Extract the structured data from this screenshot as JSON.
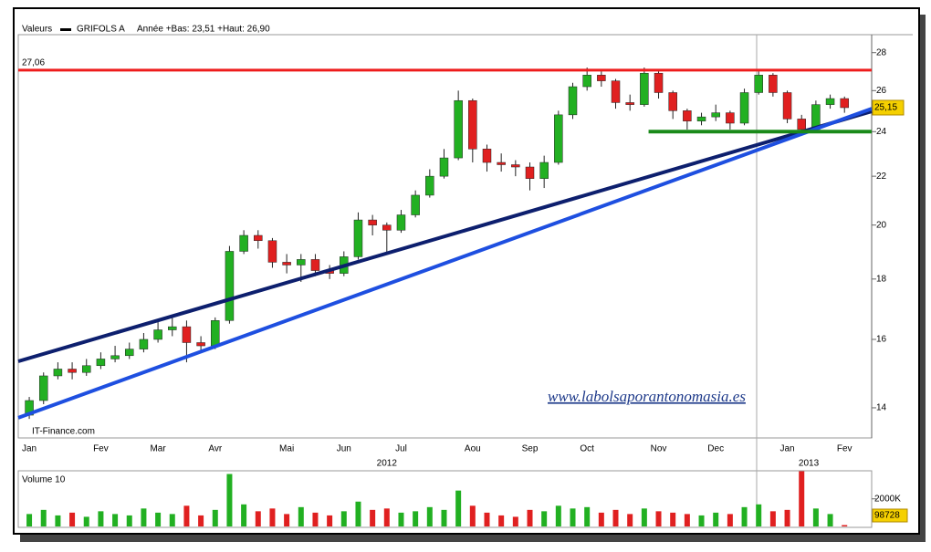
{
  "chart_data": {
    "type": "candlestick",
    "header": {
      "label": "Valeurs",
      "series_name": "GRIFOLS A",
      "range_text": "Année +Bas: 23,51 +Haut: 26,90"
    },
    "source": "IT-Finance.com",
    "watermark": "www.labolsaporantonomasia.es",
    "categories": [
      "Jan",
      null,
      null,
      null,
      null,
      "Fev",
      null,
      null,
      null,
      "Mar",
      null,
      null,
      null,
      "Avr",
      null,
      null,
      null,
      null,
      "Mai",
      null,
      null,
      null,
      "Jun",
      null,
      null,
      null,
      "Jul",
      null,
      null,
      null,
      null,
      "Aou",
      null,
      null,
      null,
      "Sep",
      null,
      null,
      null,
      "Oct",
      null,
      null,
      null,
      null,
      "Nov",
      null,
      null,
      null,
      "Dec",
      null,
      null,
      null,
      null,
      "Jan",
      null,
      null,
      null,
      "Fev"
    ],
    "years": [
      {
        "value": 25,
        "label": "2012"
      },
      {
        "value": 54.5,
        "label": "2013"
      }
    ],
    "open": [
      13.8,
      14.2,
      14.9,
      15.1,
      15.0,
      15.2,
      15.4,
      15.5,
      15.7,
      16.0,
      16.3,
      16.4,
      15.9,
      15.8,
      16.6,
      19.0,
      19.6,
      19.4,
      18.6,
      18.5,
      18.7,
      18.3,
      18.2,
      18.8,
      20.2,
      20.0,
      19.8,
      20.4,
      21.2,
      22.0,
      22.8,
      25.5,
      23.2,
      22.6,
      22.5,
      22.4,
      21.9,
      22.6,
      24.8,
      26.2,
      26.8,
      26.5,
      25.4,
      25.3,
      26.9,
      25.9,
      25.0,
      24.5,
      24.7,
      24.9,
      24.4,
      25.9,
      26.8,
      25.9,
      24.6,
      24.1,
      25.3,
      25.6
    ],
    "high": [
      14.3,
      15.0,
      15.3,
      15.3,
      15.4,
      15.6,
      15.8,
      15.9,
      16.2,
      16.6,
      16.7,
      16.6,
      16.1,
      16.7,
      19.2,
      19.8,
      19.8,
      19.5,
      18.9,
      18.9,
      18.9,
      18.5,
      19.0,
      20.5,
      20.4,
      20.1,
      20.6,
      21.4,
      22.3,
      23.2,
      26.0,
      25.6,
      23.4,
      23.0,
      22.7,
      22.6,
      22.9,
      25.0,
      26.4,
      27.2,
      27.0,
      26.6,
      25.8,
      27.2,
      27.0,
      26.0,
      25.1,
      24.9,
      25.3,
      25.0,
      26.1,
      27.0,
      26.9,
      26.0,
      24.8,
      25.5,
      25.8,
      25.7
    ],
    "low": [
      13.7,
      14.1,
      14.8,
      14.8,
      14.9,
      15.1,
      15.3,
      15.4,
      15.6,
      15.9,
      16.1,
      15.3,
      15.6,
      15.7,
      16.5,
      18.9,
      19.1,
      18.4,
      18.2,
      17.9,
      18.1,
      18.0,
      18.1,
      18.7,
      19.6,
      18.9,
      19.7,
      20.3,
      21.1,
      21.9,
      22.7,
      22.6,
      22.2,
      22.2,
      22.0,
      21.4,
      21.5,
      22.5,
      24.6,
      26.0,
      26.2,
      25.1,
      25.0,
      25.2,
      25.6,
      24.6,
      24.1,
      24.3,
      24.5,
      24.1,
      24.3,
      25.8,
      25.7,
      24.4,
      23.9,
      24.0,
      25.1,
      24.9
    ],
    "close": [
      14.2,
      14.9,
      15.1,
      15.0,
      15.2,
      15.4,
      15.5,
      15.7,
      16.0,
      16.3,
      16.4,
      15.9,
      15.8,
      16.6,
      19.0,
      19.6,
      19.4,
      18.6,
      18.5,
      18.7,
      18.3,
      18.2,
      18.8,
      20.2,
      20.0,
      19.8,
      20.4,
      21.2,
      22.0,
      22.8,
      25.5,
      23.2,
      22.6,
      22.5,
      22.4,
      21.9,
      22.6,
      24.8,
      26.2,
      26.8,
      26.5,
      25.4,
      25.3,
      26.9,
      25.9,
      25.0,
      24.5,
      24.7,
      24.9,
      24.4,
      25.9,
      26.8,
      25.9,
      24.6,
      24.1,
      25.3,
      25.6,
      25.15
    ],
    "up_color": "#22b022",
    "down_color": "#e02020",
    "xlim": [
      -0.77,
      58.9
    ],
    "ylim": [
      13.2,
      29
    ],
    "log_scale": true,
    "yticks": [
      14,
      16,
      18,
      20,
      22,
      24,
      26,
      28
    ],
    "last_price": {
      "value": 25.15,
      "label": "25,15"
    },
    "levels": [
      {
        "value": 27.06,
        "label": "27,06",
        "color": "#ee1c1c"
      }
    ],
    "lines": [
      {
        "color": "#0d1f6e",
        "x": [
          -0.77,
          58.9
        ],
        "y": [
          15.33,
          24.97
        ]
      },
      {
        "color": "#1e4fe0",
        "x": [
          -0.77,
          58.9
        ],
        "y": [
          13.73,
          25.1
        ]
      },
      {
        "color": "#1a8a1a",
        "x": [
          43.3,
          58.9
        ],
        "y": [
          24,
          24
        ]
      }
    ],
    "volume": {
      "title": "Volume 10",
      "values": [
        900000,
        1200000,
        800000,
        1000000,
        700000,
        1100000,
        900000,
        800000,
        1300000,
        1000000,
        900000,
        1500000,
        800000,
        1200000,
        3800000,
        1600000,
        1100000,
        1300000,
        900000,
        1400000,
        1000000,
        800000,
        1100000,
        1800000,
        1200000,
        1300000,
        1000000,
        1100000,
        1400000,
        1200000,
        2600000,
        1500000,
        1000000,
        800000,
        700000,
        1200000,
        1100000,
        1500000,
        1300000,
        1400000,
        1000000,
        1200000,
        900000,
        1300000,
        1100000,
        1000000,
        900000,
        800000,
        1000000,
        900000,
        1400000,
        1600000,
        1100000,
        1200000,
        4000000,
        1300000,
        900000,
        98728
      ],
      "value_labels": {
        "57": "98728"
      },
      "ylim": [
        0,
        3900000
      ],
      "yticks": [
        {
          "value": 2000000,
          "label": "2000K"
        }
      ]
    }
  }
}
